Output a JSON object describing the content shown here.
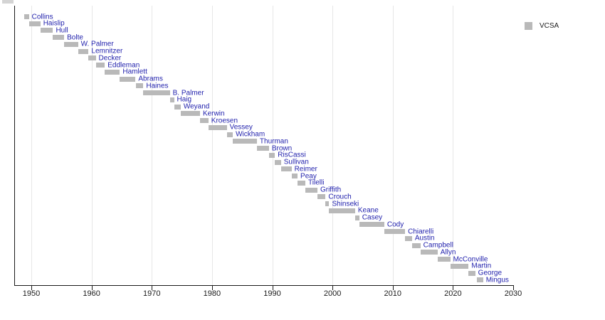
{
  "legend": {
    "label": "VCSA",
    "swatch_color": "#b9b9b9"
  },
  "colors": {
    "bar": "#b9b9b9",
    "person_label": "#2222ad",
    "axis": "#1a1a1a",
    "gridline": "#e7e7e7",
    "tick_label": "#1b1b1b",
    "background": "#ffffff"
  },
  "chart_data": {
    "type": "timeline-gantt",
    "title": "",
    "legend_entries": [
      "VCSA"
    ],
    "legend_position": "top-right",
    "grid": "vertical-decades",
    "bar_color": "#b9b9b9",
    "x_axis": {
      "label": "",
      "range_years": [
        1947.2,
        2030.4
      ],
      "ticks": [
        1950,
        1960,
        1970,
        1980,
        1990,
        2000,
        2010,
        2020,
        2030
      ],
      "gridline_years": [
        1950,
        1960,
        1970,
        1980,
        1990,
        2000,
        2010,
        2020
      ]
    },
    "people": [
      {
        "name": "Collins",
        "start": 1948.85,
        "end": 1949.6
      },
      {
        "name": "Haislip",
        "start": 1949.6,
        "end": 1951.5
      },
      {
        "name": "Hull",
        "start": 1951.5,
        "end": 1953.6
      },
      {
        "name": "Bolte",
        "start": 1953.6,
        "end": 1955.45
      },
      {
        "name": "W. Palmer",
        "start": 1955.45,
        "end": 1957.75
      },
      {
        "name": "Lemnitzer",
        "start": 1957.75,
        "end": 1959.5
      },
      {
        "name": "Decker",
        "start": 1959.5,
        "end": 1960.7
      },
      {
        "name": "Eddleman",
        "start": 1960.7,
        "end": 1962.2
      },
      {
        "name": "Hamlett",
        "start": 1962.2,
        "end": 1964.7
      },
      {
        "name": "Abrams",
        "start": 1964.7,
        "end": 1967.3
      },
      {
        "name": "Haines",
        "start": 1967.35,
        "end": 1968.6
      },
      {
        "name": "B. Palmer",
        "start": 1968.6,
        "end": 1973.0
      },
      {
        "name": "Haig",
        "start": 1973.0,
        "end": 1973.7
      },
      {
        "name": "Weyand",
        "start": 1973.7,
        "end": 1974.8
      },
      {
        "name": "Kerwin",
        "start": 1974.8,
        "end": 1978.0
      },
      {
        "name": "Kroesen",
        "start": 1978.0,
        "end": 1979.4
      },
      {
        "name": "Vessey",
        "start": 1979.4,
        "end": 1982.45
      },
      {
        "name": "Wickham",
        "start": 1982.45,
        "end": 1983.45
      },
      {
        "name": "Thurman",
        "start": 1983.45,
        "end": 1987.45
      },
      {
        "name": "Brown",
        "start": 1987.45,
        "end": 1989.45
      },
      {
        "name": "RisCassi",
        "start": 1989.45,
        "end": 1990.45
      },
      {
        "name": "Sullivan",
        "start": 1990.45,
        "end": 1991.45
      },
      {
        "name": "Reimer",
        "start": 1991.45,
        "end": 1993.2
      },
      {
        "name": "Peay",
        "start": 1993.2,
        "end": 1994.2
      },
      {
        "name": "Tilelli",
        "start": 1994.2,
        "end": 1995.5
      },
      {
        "name": "Griffith",
        "start": 1995.5,
        "end": 1997.5
      },
      {
        "name": "Crouch",
        "start": 1997.5,
        "end": 1998.85
      },
      {
        "name": "Shinseki",
        "start": 1998.85,
        "end": 1999.45
      },
      {
        "name": "Keane",
        "start": 1999.45,
        "end": 2003.75
      },
      {
        "name": "Casey",
        "start": 2003.75,
        "end": 2004.45
      },
      {
        "name": "Cody",
        "start": 2004.45,
        "end": 2008.6
      },
      {
        "name": "Chiarelli",
        "start": 2008.6,
        "end": 2012.05
      },
      {
        "name": "Austin",
        "start": 2012.05,
        "end": 2013.2
      },
      {
        "name": "Campbell",
        "start": 2013.2,
        "end": 2014.6
      },
      {
        "name": "Allyn",
        "start": 2014.6,
        "end": 2017.45
      },
      {
        "name": "McConville",
        "start": 2017.45,
        "end": 2019.55
      },
      {
        "name": "Martin",
        "start": 2019.55,
        "end": 2022.6
      },
      {
        "name": "George",
        "start": 2022.6,
        "end": 2023.7
      },
      {
        "name": "Mingus",
        "start": 2024.0,
        "end": 2025.0
      }
    ]
  }
}
